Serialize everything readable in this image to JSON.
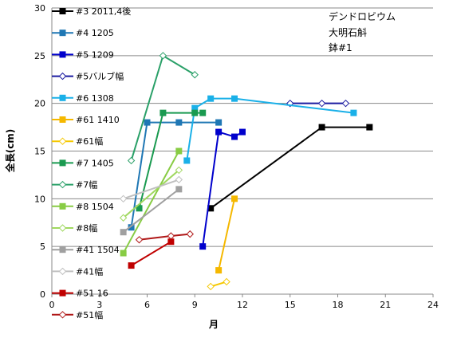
{
  "chart_data": {
    "type": "line",
    "xlabel": "月",
    "ylabel": "全長(cm)",
    "xlim": [
      0,
      24
    ],
    "ylim": [
      0,
      30
    ],
    "xticks": [
      0,
      3,
      6,
      9,
      12,
      15,
      18,
      21,
      24
    ],
    "yticks": [
      0,
      5,
      10,
      15,
      20,
      25,
      30
    ],
    "grid": "horizontal",
    "annotation": [
      "デンドロビウム",
      "大明石斛",
      "鉢#1"
    ],
    "series": [
      {
        "name": "#3 2011,4後",
        "color": "#000000",
        "marker": "square",
        "points": [
          [
            10,
            9
          ],
          [
            17,
            17.5
          ],
          [
            20,
            17.5
          ]
        ]
      },
      {
        "name": "#4 1205",
        "color": "#1f77b4",
        "marker": "square",
        "points": [
          [
            5,
            7
          ],
          [
            6,
            18
          ],
          [
            8,
            18
          ],
          [
            10.5,
            18
          ]
        ]
      },
      {
        "name": "#5 1209",
        "color": "#0000cc",
        "marker": "square",
        "points": [
          [
            9.5,
            5
          ],
          [
            10.5,
            17
          ],
          [
            11.5,
            16.5
          ],
          [
            12,
            17
          ]
        ]
      },
      {
        "name": "#5バルブ幅",
        "color": "#1a1aa0",
        "marker": "diamond",
        "points": [
          [
            15,
            20
          ],
          [
            17,
            20
          ],
          [
            18.5,
            20
          ]
        ]
      },
      {
        "name": "#6 1308",
        "color": "#1ab0e8",
        "marker": "square",
        "points": [
          [
            8.5,
            14
          ],
          [
            9,
            19.5
          ],
          [
            10,
            20.5
          ],
          [
            11.5,
            20.5
          ],
          [
            19,
            19
          ]
        ]
      },
      {
        "name": "#61 1410",
        "color": "#f5b800",
        "marker": "square",
        "points": [
          [
            10.5,
            2.5
          ],
          [
            11.5,
            10
          ]
        ]
      },
      {
        "name": "#61幅",
        "color": "#f5c800",
        "marker": "diamond",
        "points": [
          [
            10,
            0.8
          ],
          [
            11,
            1.3
          ]
        ]
      },
      {
        "name": "#7 1405",
        "color": "#1a9a50",
        "marker": "square",
        "points": [
          [
            5.5,
            9
          ],
          [
            7,
            19
          ],
          [
            9,
            19
          ],
          [
            9.5,
            19
          ]
        ]
      },
      {
        "name": "#7幅",
        "color": "#2aa068",
        "marker": "diamond",
        "points": [
          [
            5,
            14
          ],
          [
            7,
            25
          ],
          [
            9,
            23
          ]
        ]
      },
      {
        "name": "#8 1504",
        "color": "#88cc44",
        "marker": "square",
        "points": [
          [
            4.5,
            4.3
          ],
          [
            8,
            15
          ]
        ]
      },
      {
        "name": "#8幅",
        "color": "#a0d860",
        "marker": "diamond",
        "points": [
          [
            4.5,
            8
          ],
          [
            8,
            13
          ]
        ]
      },
      {
        "name": "#41 1504",
        "color": "#a0a0a0",
        "marker": "square",
        "points": [
          [
            4.5,
            6.5
          ],
          [
            8,
            11
          ]
        ]
      },
      {
        "name": "#41幅",
        "color": "#c0c0c0",
        "marker": "diamond",
        "points": [
          [
            4.5,
            10
          ],
          [
            8,
            12
          ]
        ]
      },
      {
        "name": "#51 16",
        "color": "#c00000",
        "marker": "square",
        "points": [
          [
            5,
            3
          ],
          [
            7.5,
            5.5
          ]
        ]
      },
      {
        "name": "#51幅",
        "color": "#b01818",
        "marker": "diamond",
        "points": [
          [
            5.5,
            5.7
          ],
          [
            7.5,
            6.1
          ],
          [
            8.7,
            6.3
          ]
        ]
      }
    ]
  }
}
